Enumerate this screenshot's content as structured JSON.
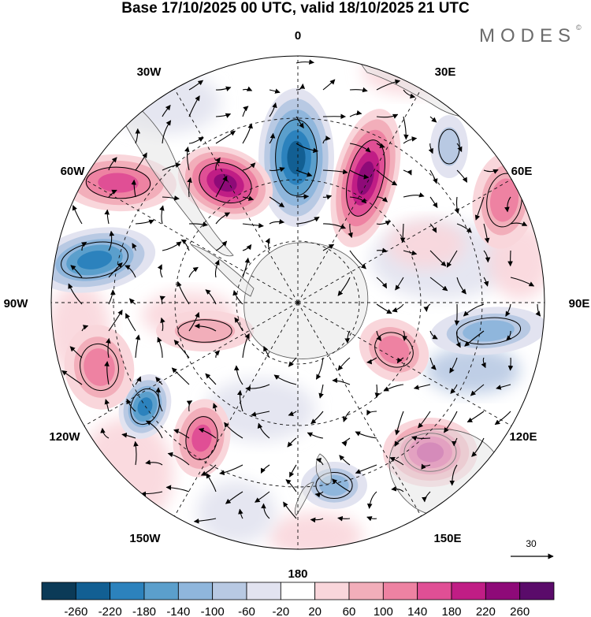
{
  "header": {
    "title": "Base 17/10/2025 00 UTC, valid 18/10/2025 21 UTC",
    "brand": "MODES",
    "brand_mark": "©"
  },
  "map": {
    "projection": "south-polar-stereographic",
    "lon_labels": {
      "top": "0",
      "e30": "30E",
      "e60": "60E",
      "e90": "90E",
      "e120": "120E",
      "e150": "150E",
      "bottom": "180",
      "w150": "150W",
      "w120": "120W",
      "w90": "90W",
      "w60": "60W",
      "w30": "30W"
    },
    "anomaly_centers": [
      {
        "name": "neg-0",
        "value": -220
      },
      {
        "name": "pos-20e",
        "value": 240
      },
      {
        "name": "pos-45w",
        "value": 220
      },
      {
        "name": "pos-60w",
        "value": 160
      },
      {
        "name": "neg-80w",
        "value": -200
      },
      {
        "name": "pos-60e",
        "value": 120
      },
      {
        "name": "neg-30e",
        "value": -80
      },
      {
        "name": "neg-100e",
        "value": -120
      },
      {
        "name": "pos-115e",
        "value": 100
      },
      {
        "name": "pos-140e",
        "value": 200
      },
      {
        "name": "neg-175e",
        "value": -120
      },
      {
        "name": "pos-145w",
        "value": 140
      },
      {
        "name": "neg-130w",
        "value": -180
      },
      {
        "name": "pos-115w",
        "value": 120
      },
      {
        "name": "pos-95w",
        "value": 60
      }
    ],
    "reference_vector": {
      "value": "30"
    }
  },
  "colorbar": {
    "ticks": [
      "-260",
      "-220",
      "-180",
      "-140",
      "-100",
      "-60",
      "-20",
      "20",
      "60",
      "100",
      "140",
      "180",
      "220",
      "260"
    ],
    "colors": [
      "#0b3a57",
      "#125f93",
      "#2c82bd",
      "#5b9fcc",
      "#8fb6dc",
      "#b8c9e3",
      "#e2e3f0",
      "#ffffff",
      "#f9d6db",
      "#f2aeba",
      "#ee82a2",
      "#e04f95",
      "#c01d85",
      "#8e0a78",
      "#5a0b6a"
    ]
  },
  "colors": {
    "land": "#e6e6e6",
    "coast": "#555555",
    "grid": "#111111"
  }
}
